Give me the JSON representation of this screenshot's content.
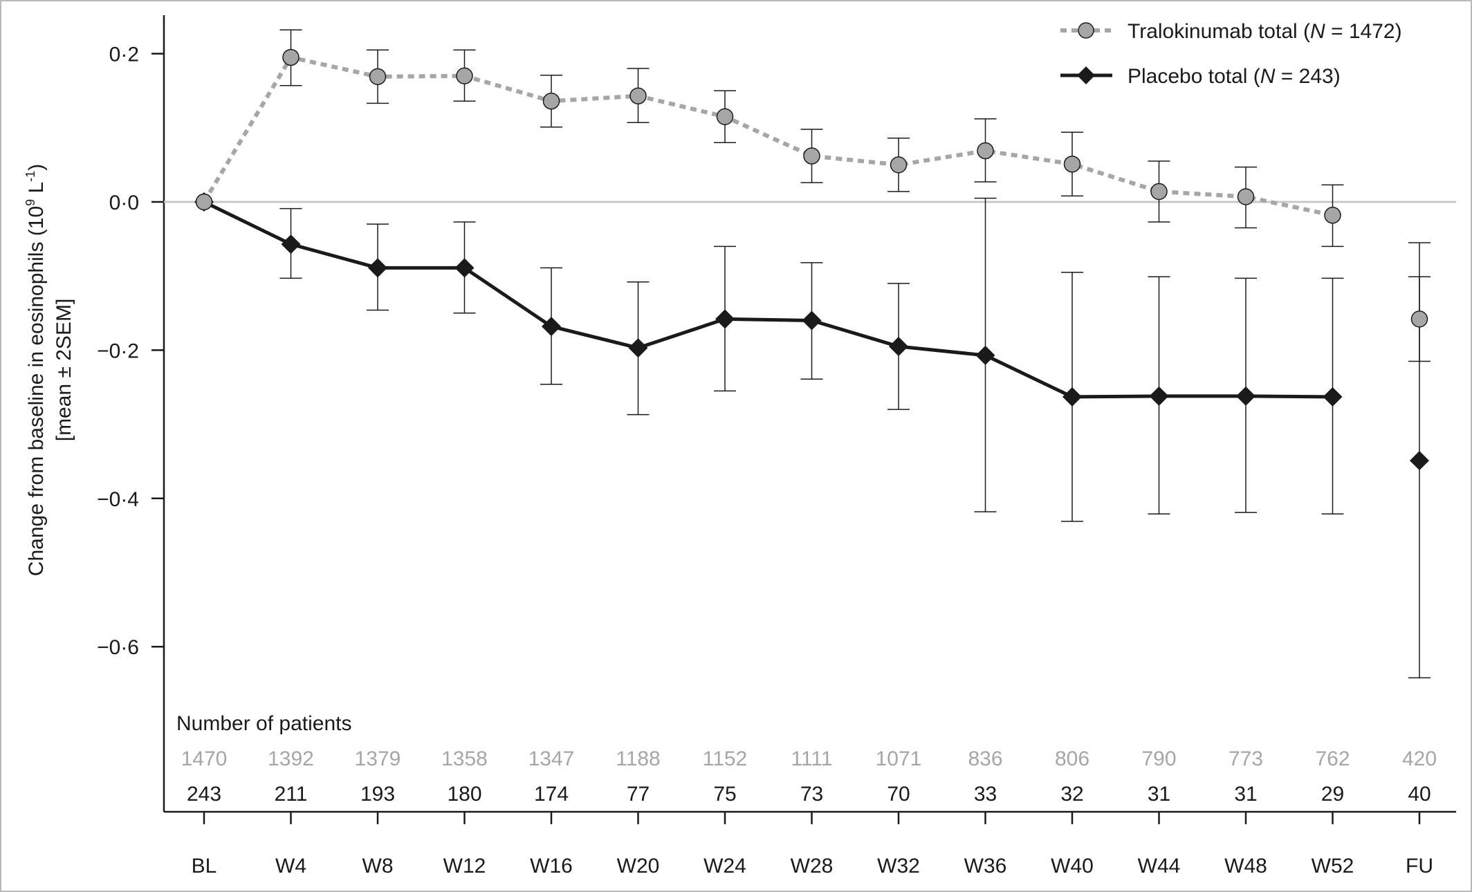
{
  "chart_data": {
    "type": "line",
    "ylabel_line1": "Change from baseline in eosinophils (10",
    "ylabel_sup1": "9",
    "ylabel_mid": " L",
    "ylabel_sup2": "-1",
    "ylabel_end": ")",
    "ylabel_line2": "[mean ± 2SEM]",
    "ylim": [
      -0.78,
      0.26
    ],
    "yticks": [
      {
        "value": 0.2,
        "label": "0·2"
      },
      {
        "value": 0.0,
        "label": "0·0"
      },
      {
        "value": -0.2,
        "label": "−0·2"
      },
      {
        "value": -0.4,
        "label": "−0·4"
      },
      {
        "value": -0.6,
        "label": "−0·6"
      }
    ],
    "categories": [
      "BL",
      "W4",
      "W8",
      "W12",
      "W16",
      "W20",
      "W24",
      "W28",
      "W32",
      "W36",
      "W40",
      "W44",
      "W48",
      "W52",
      "FU"
    ],
    "reference_line": 0.0,
    "grid": false,
    "legend_position": "top-right",
    "series": [
      {
        "name_main": "Tralokinumab total (",
        "name_italic": "N",
        "name_end": " = 1472)",
        "color": "#a6a6a6",
        "marker": "circle",
        "line_style": "dotted",
        "values": [
          0.0,
          0.195,
          0.169,
          0.17,
          0.136,
          0.143,
          0.115,
          0.062,
          0.05,
          0.069,
          0.051,
          0.014,
          0.007,
          -0.018,
          -0.158
        ],
        "err_low": [
          null,
          0.157,
          0.133,
          0.136,
          0.101,
          0.107,
          0.08,
          0.026,
          0.014,
          0.027,
          0.008,
          -0.027,
          -0.035,
          -0.06,
          -0.215
        ],
        "err_high": [
          null,
          0.232,
          0.205,
          0.205,
          0.171,
          0.18,
          0.15,
          0.098,
          0.086,
          0.112,
          0.094,
          0.055,
          0.047,
          0.023,
          -0.101
        ]
      },
      {
        "name_main": "Placebo total (",
        "name_italic": "N",
        "name_end": " = 243)",
        "color": "#1a1a1a",
        "marker": "diamond",
        "line_style": "solid",
        "values": [
          0.0,
          -0.057,
          -0.089,
          -0.089,
          -0.168,
          -0.197,
          -0.158,
          -0.16,
          -0.195,
          -0.207,
          -0.263,
          -0.262,
          -0.262,
          -0.263,
          -0.349
        ],
        "err_low": [
          null,
          -0.103,
          -0.146,
          -0.15,
          -0.246,
          -0.287,
          -0.255,
          -0.239,
          -0.28,
          -0.418,
          -0.431,
          -0.421,
          -0.419,
          -0.421,
          -0.642
        ],
        "err_high": [
          null,
          -0.009,
          -0.03,
          -0.027,
          -0.089,
          -0.108,
          -0.06,
          -0.082,
          -0.11,
          0.005,
          -0.095,
          -0.101,
          -0.103,
          -0.103,
          -0.055
        ]
      }
    ],
    "patients_title": "Number of patients",
    "patients": {
      "tralokinumab": [
        "1470",
        "1392",
        "1379",
        "1358",
        "1347",
        "1188",
        "1152",
        "1111",
        "1071",
        "836",
        "806",
        "790",
        "773",
        "762",
        "420"
      ],
      "placebo": [
        "243",
        "211",
        "193",
        "180",
        "174",
        "77",
        "75",
        "73",
        "70",
        "33",
        "32",
        "31",
        "31",
        "29",
        "40"
      ]
    }
  }
}
